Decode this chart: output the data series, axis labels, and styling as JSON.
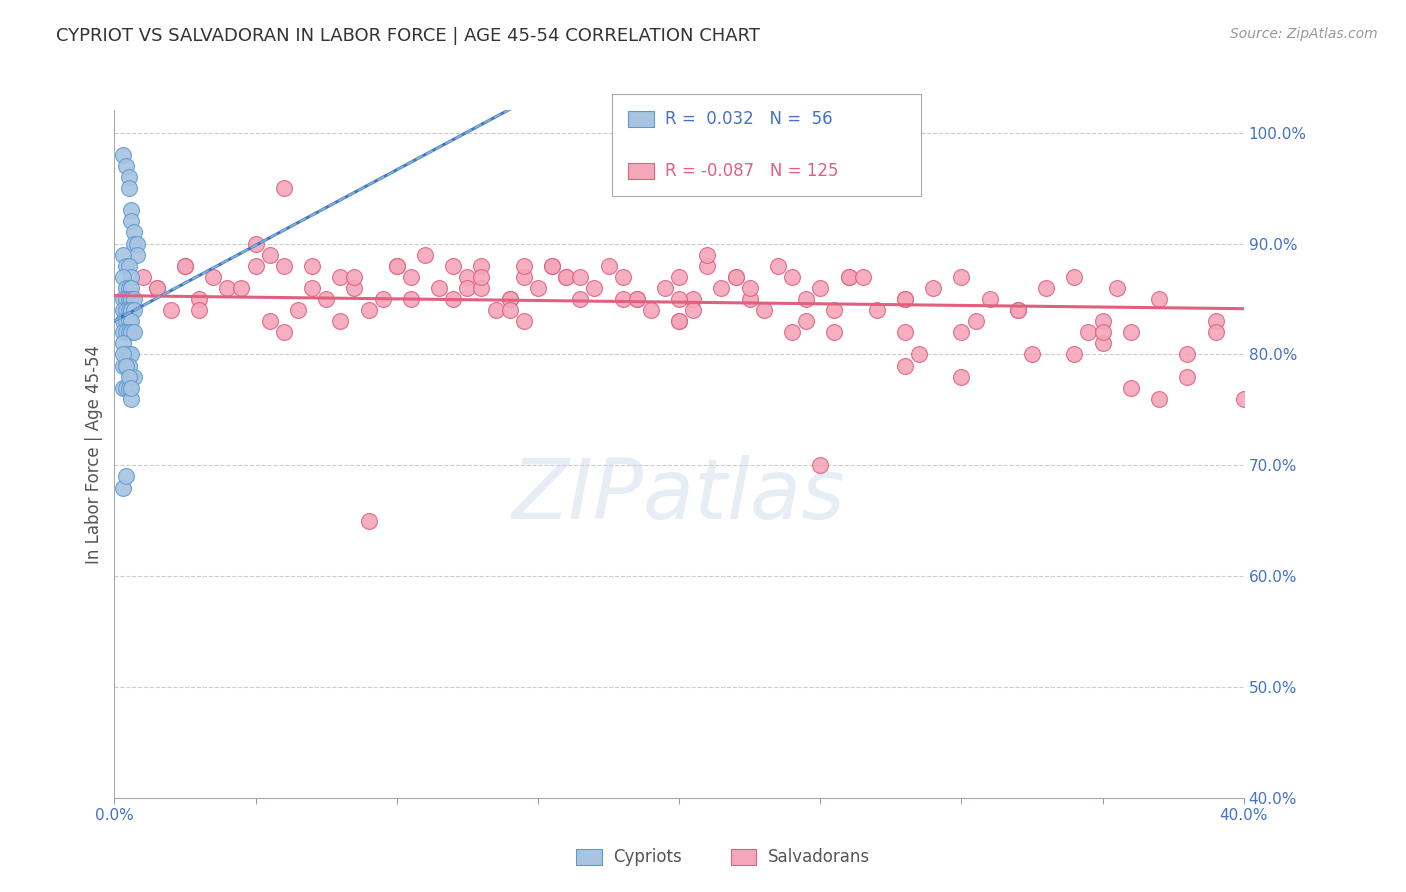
{
  "title": "CYPRIOT VS SALVADORAN IN LABOR FORCE | AGE 45-54 CORRELATION CHART",
  "source": "Source: ZipAtlas.com",
  "ylabel": "In Labor Force | Age 45-54",
  "xlim": [
    0.0,
    0.4
  ],
  "ylim": [
    0.4,
    1.02
  ],
  "yticks": [
    0.4,
    0.5,
    0.6,
    0.7,
    0.8,
    0.9,
    1.0
  ],
  "ytick_labels": [
    "40.0%",
    "50.0%",
    "60.0%",
    "70.0%",
    "80.0%",
    "90.0%",
    "100.0%"
  ],
  "xticks": [
    0.0,
    0.05,
    0.1,
    0.15,
    0.2,
    0.25,
    0.3,
    0.35,
    0.4
  ],
  "xtick_labels": [
    "0.0%",
    "",
    "",
    "",
    "",
    "",
    "",
    "",
    "40.0%"
  ],
  "grid_color": "#cccccc",
  "background_color": "#ffffff",
  "axis_color": "#4472c4",
  "cypriot_color": "#a8c4e0",
  "cypriot_edge_color": "#5b9bd5",
  "salvadoran_color": "#f4a7b9",
  "salvadoran_edge_color": "#e06080",
  "cypriot_R": 0.032,
  "cypriot_N": 56,
  "salvadoran_R": -0.087,
  "salvadoran_N": 125,
  "watermark": "ZIPatlas",
  "cypriot_scatter_x": [
    0.003,
    0.004,
    0.005,
    0.005,
    0.006,
    0.006,
    0.007,
    0.007,
    0.008,
    0.008,
    0.003,
    0.004,
    0.005,
    0.006,
    0.003,
    0.004,
    0.005,
    0.006,
    0.003,
    0.004,
    0.005,
    0.006,
    0.007,
    0.003,
    0.004,
    0.005,
    0.006,
    0.007,
    0.003,
    0.004,
    0.005,
    0.006,
    0.003,
    0.004,
    0.005,
    0.006,
    0.007,
    0.003,
    0.004,
    0.005,
    0.006,
    0.003,
    0.004,
    0.005,
    0.006,
    0.007,
    0.003,
    0.004,
    0.005,
    0.006,
    0.003,
    0.004,
    0.005,
    0.006,
    0.003,
    0.004
  ],
  "cypriot_scatter_y": [
    0.98,
    0.97,
    0.96,
    0.95,
    0.93,
    0.92,
    0.91,
    0.9,
    0.9,
    0.89,
    0.89,
    0.88,
    0.88,
    0.87,
    0.87,
    0.86,
    0.86,
    0.86,
    0.85,
    0.85,
    0.85,
    0.85,
    0.85,
    0.84,
    0.84,
    0.84,
    0.84,
    0.84,
    0.83,
    0.83,
    0.83,
    0.83,
    0.82,
    0.82,
    0.82,
    0.82,
    0.82,
    0.81,
    0.8,
    0.8,
    0.8,
    0.79,
    0.79,
    0.79,
    0.78,
    0.78,
    0.77,
    0.77,
    0.77,
    0.76,
    0.8,
    0.79,
    0.78,
    0.77,
    0.68,
    0.69
  ],
  "salvadoran_scatter_x": [
    0.005,
    0.01,
    0.015,
    0.02,
    0.025,
    0.03,
    0.035,
    0.04,
    0.05,
    0.055,
    0.06,
    0.07,
    0.075,
    0.08,
    0.085,
    0.09,
    0.095,
    0.1,
    0.105,
    0.11,
    0.115,
    0.12,
    0.125,
    0.13,
    0.135,
    0.14,
    0.145,
    0.15,
    0.155,
    0.16,
    0.165,
    0.17,
    0.175,
    0.18,
    0.185,
    0.19,
    0.195,
    0.2,
    0.205,
    0.21,
    0.215,
    0.22,
    0.225,
    0.23,
    0.235,
    0.24,
    0.245,
    0.25,
    0.255,
    0.26,
    0.28,
    0.29,
    0.3,
    0.31,
    0.32,
    0.33,
    0.34,
    0.35,
    0.36,
    0.37,
    0.38,
    0.39,
    0.015,
    0.03,
    0.05,
    0.08,
    0.1,
    0.12,
    0.14,
    0.16,
    0.18,
    0.2,
    0.22,
    0.24,
    0.26,
    0.28,
    0.3,
    0.32,
    0.35,
    0.025,
    0.045,
    0.065,
    0.085,
    0.105,
    0.125,
    0.145,
    0.165,
    0.185,
    0.205,
    0.225,
    0.245,
    0.265,
    0.285,
    0.305,
    0.325,
    0.345,
    0.06,
    0.13,
    0.2,
    0.27,
    0.34,
    0.06,
    0.13,
    0.2,
    0.28,
    0.35,
    0.07,
    0.14,
    0.21,
    0.28,
    0.055,
    0.155,
    0.255,
    0.355,
    0.09,
    0.25,
    0.145,
    0.3,
    0.4,
    0.38,
    0.39,
    0.37,
    0.36
  ],
  "salvadoran_scatter_y": [
    0.85,
    0.87,
    0.86,
    0.84,
    0.88,
    0.85,
    0.87,
    0.86,
    0.9,
    0.89,
    0.95,
    0.88,
    0.85,
    0.87,
    0.86,
    0.84,
    0.85,
    0.88,
    0.87,
    0.89,
    0.86,
    0.85,
    0.87,
    0.88,
    0.84,
    0.85,
    0.87,
    0.86,
    0.88,
    0.87,
    0.85,
    0.86,
    0.88,
    0.87,
    0.85,
    0.84,
    0.86,
    0.87,
    0.85,
    0.88,
    0.86,
    0.87,
    0.85,
    0.84,
    0.88,
    0.87,
    0.85,
    0.86,
    0.84,
    0.87,
    0.85,
    0.86,
    0.87,
    0.85,
    0.84,
    0.86,
    0.87,
    0.83,
    0.82,
    0.85,
    0.78,
    0.83,
    0.86,
    0.84,
    0.88,
    0.83,
    0.88,
    0.88,
    0.85,
    0.87,
    0.85,
    0.83,
    0.87,
    0.82,
    0.87,
    0.85,
    0.82,
    0.84,
    0.81,
    0.88,
    0.86,
    0.84,
    0.87,
    0.85,
    0.86,
    0.83,
    0.87,
    0.85,
    0.84,
    0.86,
    0.83,
    0.87,
    0.8,
    0.83,
    0.8,
    0.82,
    0.88,
    0.86,
    0.83,
    0.84,
    0.8,
    0.82,
    0.87,
    0.85,
    0.79,
    0.82,
    0.86,
    0.84,
    0.89,
    0.82,
    0.83,
    0.88,
    0.82,
    0.86,
    0.65,
    0.7,
    0.88,
    0.78,
    0.76,
    0.8,
    0.82,
    0.76,
    0.77
  ]
}
